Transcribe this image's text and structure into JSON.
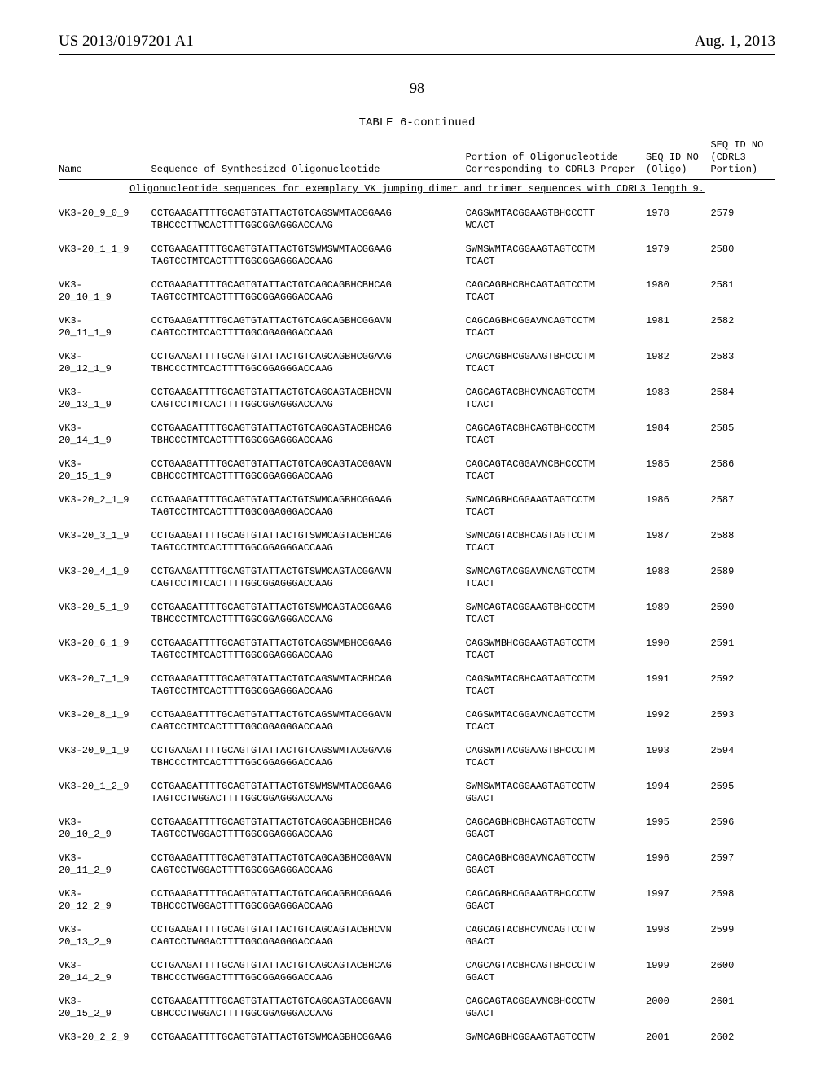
{
  "header": {
    "left": "US 2013/0197201 A1",
    "right": "Aug. 1, 2013"
  },
  "page_number": "98",
  "table": {
    "title": "TABLE 6-continued",
    "caption": "Oligonucleotide sequences for exemplary VK jumping dimer and trimer sequences with CDRL3 length 9.",
    "columns": {
      "name": "Name",
      "seq": "Sequence of Synthesized Oligonucleotide",
      "portion": "Portion of\nOligonucleotide\nCorresponding to CDRL3\nProper",
      "id1": "SEQ ID\nNO\n(Oligo)",
      "id2": "SEQ ID\nNO\n(CDRL3\nPortion)"
    },
    "rows": [
      {
        "name": "VK3-20_9_0_9",
        "seq": "CCTGAAGATTTTGCAGTGTATTACTGTCAGSWMTACGGAAG\nTBHCCCTTWCACTTTTGGCGGAGGGACCAAG",
        "portion": "CAGSWMTACGGAAGTBHCCCTT\nWCACT",
        "id1": "1978",
        "id2": "2579"
      },
      {
        "name": "VK3-20_1_1_9",
        "seq": "CCTGAAGATTTTGCAGTGTATTACTGTSWMSWMTACGGAAG\nTAGTCCTMTCACTTTTGGCGGAGGGACCAAG",
        "portion": "SWMSWMTACGGAAGTAGTCCTM\nTCACT",
        "id1": "1979",
        "id2": "2580"
      },
      {
        "name": "VK3-\n20_10_1_9",
        "seq": "CCTGAAGATTTTGCAGTGTATTACTGTCAGCAGBHCBHCAG\nTAGTCCTMTCACTTTTGGCGGAGGGACCAAG",
        "portion": "CAGCAGBHCBHCAGTAGTCCTM\nTCACT",
        "id1": "1980",
        "id2": "2581"
      },
      {
        "name": "VK3-\n20_11_1_9",
        "seq": "CCTGAAGATTTTGCAGTGTATTACTGTCAGCAGBHCGGAVN\nCAGTCCTMTCACTTTTGGCGGAGGGACCAAG",
        "portion": "CAGCAGBHCGGAVNCAGTCCTM\nTCACT",
        "id1": "1981",
        "id2": "2582"
      },
      {
        "name": "VK3-\n20_12_1_9",
        "seq": "CCTGAAGATTTTGCAGTGTATTACTGTCAGCAGBHCGGAAG\nTBHCCCTMTCACTTTTGGCGGAGGGACCAAG",
        "portion": "CAGCAGBHCGGAAGTBHCCCTM\nTCACT",
        "id1": "1982",
        "id2": "2583"
      },
      {
        "name": "VK3-\n20_13_1_9",
        "seq": "CCTGAAGATTTTGCAGTGTATTACTGTCAGCAGTACBHCVN\nCAGTCCTMTCACTTTTGGCGGAGGGACCAAG",
        "portion": "CAGCAGTACBHCVNCAGTCCTM\nTCACT",
        "id1": "1983",
        "id2": "2584"
      },
      {
        "name": "VK3-\n20_14_1_9",
        "seq": "CCTGAAGATTTTGCAGTGTATTACTGTCAGCAGTACBHCAG\nTBHCCCTMTCACTTTTGGCGGAGGGACCAAG",
        "portion": "CAGCAGTACBHCAGTBHCCCTM\nTCACT",
        "id1": "1984",
        "id2": "2585"
      },
      {
        "name": "VK3-\n20_15_1_9",
        "seq": "CCTGAAGATTTTGCAGTGTATTACTGTCAGCAGTACGGAVN\nCBHCCCTMTCACTTTTGGCGGAGGGACCAAG",
        "portion": "CAGCAGTACGGAVNCBHCCCTM\nTCACT",
        "id1": "1985",
        "id2": "2586"
      },
      {
        "name": "VK3-20_2_1_9",
        "seq": "CCTGAAGATTTTGCAGTGTATTACTGTSWMCAGBHCGGAAG\nTAGTCCTMTCACTTTTGGCGGAGGGACCAAG",
        "portion": "SWMCAGBHCGGAAGTAGTCCTM\nTCACT",
        "id1": "1986",
        "id2": "2587"
      },
      {
        "name": "VK3-20_3_1_9",
        "seq": "CCTGAAGATTTTGCAGTGTATTACTGTSWMCAGTACBHCAG\nTAGTCCTMTCACTTTTGGCGGAGGGACCAAG",
        "portion": "SWMCAGTACBHCAGTAGTCCTM\nTCACT",
        "id1": "1987",
        "id2": "2588"
      },
      {
        "name": "VK3-20_4_1_9",
        "seq": "CCTGAAGATTTTGCAGTGTATTACTGTSWMCAGTACGGAVN\nCAGTCCTMTCACTTTTGGCGGAGGGACCAAG",
        "portion": "SWMCAGTACGGAVNCAGTCCTM\nTCACT",
        "id1": "1988",
        "id2": "2589"
      },
      {
        "name": "VK3-20_5_1_9",
        "seq": "CCTGAAGATTTTGCAGTGTATTACTGTSWMCAGTACGGAAG\nTBHCCCTMTCACTTTTGGCGGAGGGACCAAG",
        "portion": "SWMCAGTACGGAAGTBHCCCTM\nTCACT",
        "id1": "1989",
        "id2": "2590"
      },
      {
        "name": "VK3-20_6_1_9",
        "seq": "CCTGAAGATTTTGCAGTGTATTACTGTCAGSWMBHCGGAAG\nTAGTCCTMTCACTTTTGGCGGAGGGACCAAG",
        "portion": "CAGSWMBHCGGAAGTAGTCCTM\nTCACT",
        "id1": "1990",
        "id2": "2591"
      },
      {
        "name": "VK3-20_7_1_9",
        "seq": "CCTGAAGATTTTGCAGTGTATTACTGTCAGSWMTACBHCAG\nTAGTCCTMTCACTTTTGGCGGAGGGACCAAG",
        "portion": "CAGSWMTACBHCAGTAGTCCTM\nTCACT",
        "id1": "1991",
        "id2": "2592"
      },
      {
        "name": "VK3-20_8_1_9",
        "seq": "CCTGAAGATTTTGCAGTGTATTACTGTCAGSWMTACGGAVN\nCAGTCCTMTCACTTTTGGCGGAGGGACCAAG",
        "portion": "CAGSWMTACGGAVNCAGTCCTM\nTCACT",
        "id1": "1992",
        "id2": "2593"
      },
      {
        "name": "VK3-20_9_1_9",
        "seq": "CCTGAAGATTTTGCAGTGTATTACTGTCAGSWMTACGGAAG\nTBHCCCTMTCACTTTTGGCGGAGGGACCAAG",
        "portion": "CAGSWMTACGGAAGTBHCCCTM\nTCACT",
        "id1": "1993",
        "id2": "2594"
      },
      {
        "name": "VK3-20_1_2_9",
        "seq": "CCTGAAGATTTTGCAGTGTATTACTGTSWMSWMTACGGAAG\nTAGTCCTWGGACTTTTGGCGGAGGGACCAAG",
        "portion": "SWMSWMTACGGAAGTAGTCCTW\nGGACT",
        "id1": "1994",
        "id2": "2595"
      },
      {
        "name": "VK3-\n20_10_2_9",
        "seq": "CCTGAAGATTTTGCAGTGTATTACTGTCAGCAGBHCBHCAG\nTAGTCCTWGGACTTTTGGCGGAGGGACCAAG",
        "portion": "CAGCAGBHCBHCAGTAGTCCTW\nGGACT",
        "id1": "1995",
        "id2": "2596"
      },
      {
        "name": "VK3-\n20_11_2_9",
        "seq": "CCTGAAGATTTTGCAGTGTATTACTGTCAGCAGBHCGGAVN\nCAGTCCTWGGACTTTTGGCGGAGGGACCAAG",
        "portion": "CAGCAGBHCGGAVNCAGTCCTW\nGGACT",
        "id1": "1996",
        "id2": "2597"
      },
      {
        "name": "VK3-\n20_12_2_9",
        "seq": "CCTGAAGATTTTGCAGTGTATTACTGTCAGCAGBHCGGAAG\nTBHCCCTWGGACTTTTGGCGGAGGGACCAAG",
        "portion": "CAGCAGBHCGGAAGTBHCCCTW\nGGACT",
        "id1": "1997",
        "id2": "2598"
      },
      {
        "name": "VK3-\n20_13_2_9",
        "seq": "CCTGAAGATTTTGCAGTGTATTACTGTCAGCAGTACBHCVN\nCAGTCCTWGGACTTTTGGCGGAGGGACCAAG",
        "portion": "CAGCAGTACBHCVNCAGTCCTW\nGGACT",
        "id1": "1998",
        "id2": "2599"
      },
      {
        "name": "VK3-\n20_14_2_9",
        "seq": "CCTGAAGATTTTGCAGTGTATTACTGTCAGCAGTACBHCAG\nTBHCCCTWGGACTTTTGGCGGAGGGACCAAG",
        "portion": "CAGCAGTACBHCAGTBHCCCTW\nGGACT",
        "id1": "1999",
        "id2": "2600"
      },
      {
        "name": "VK3-\n20_15_2_9",
        "seq": "CCTGAAGATTTTGCAGTGTATTACTGTCAGCAGTACGGAVN\nCBHCCCTWGGACTTTTGGCGGAGGGACCAAG",
        "portion": "CAGCAGTACGGAVNCBHCCCTW\nGGACT",
        "id1": "2000",
        "id2": "2601"
      },
      {
        "name": "VK3-20_2_2_9",
        "seq": "CCTGAAGATTTTGCAGTGTATTACTGTSWMCAGBHCGGAAG",
        "portion": "SWMCAGBHCGGAAGTAGTCCTW",
        "id1": "2001",
        "id2": "2602"
      }
    ]
  }
}
